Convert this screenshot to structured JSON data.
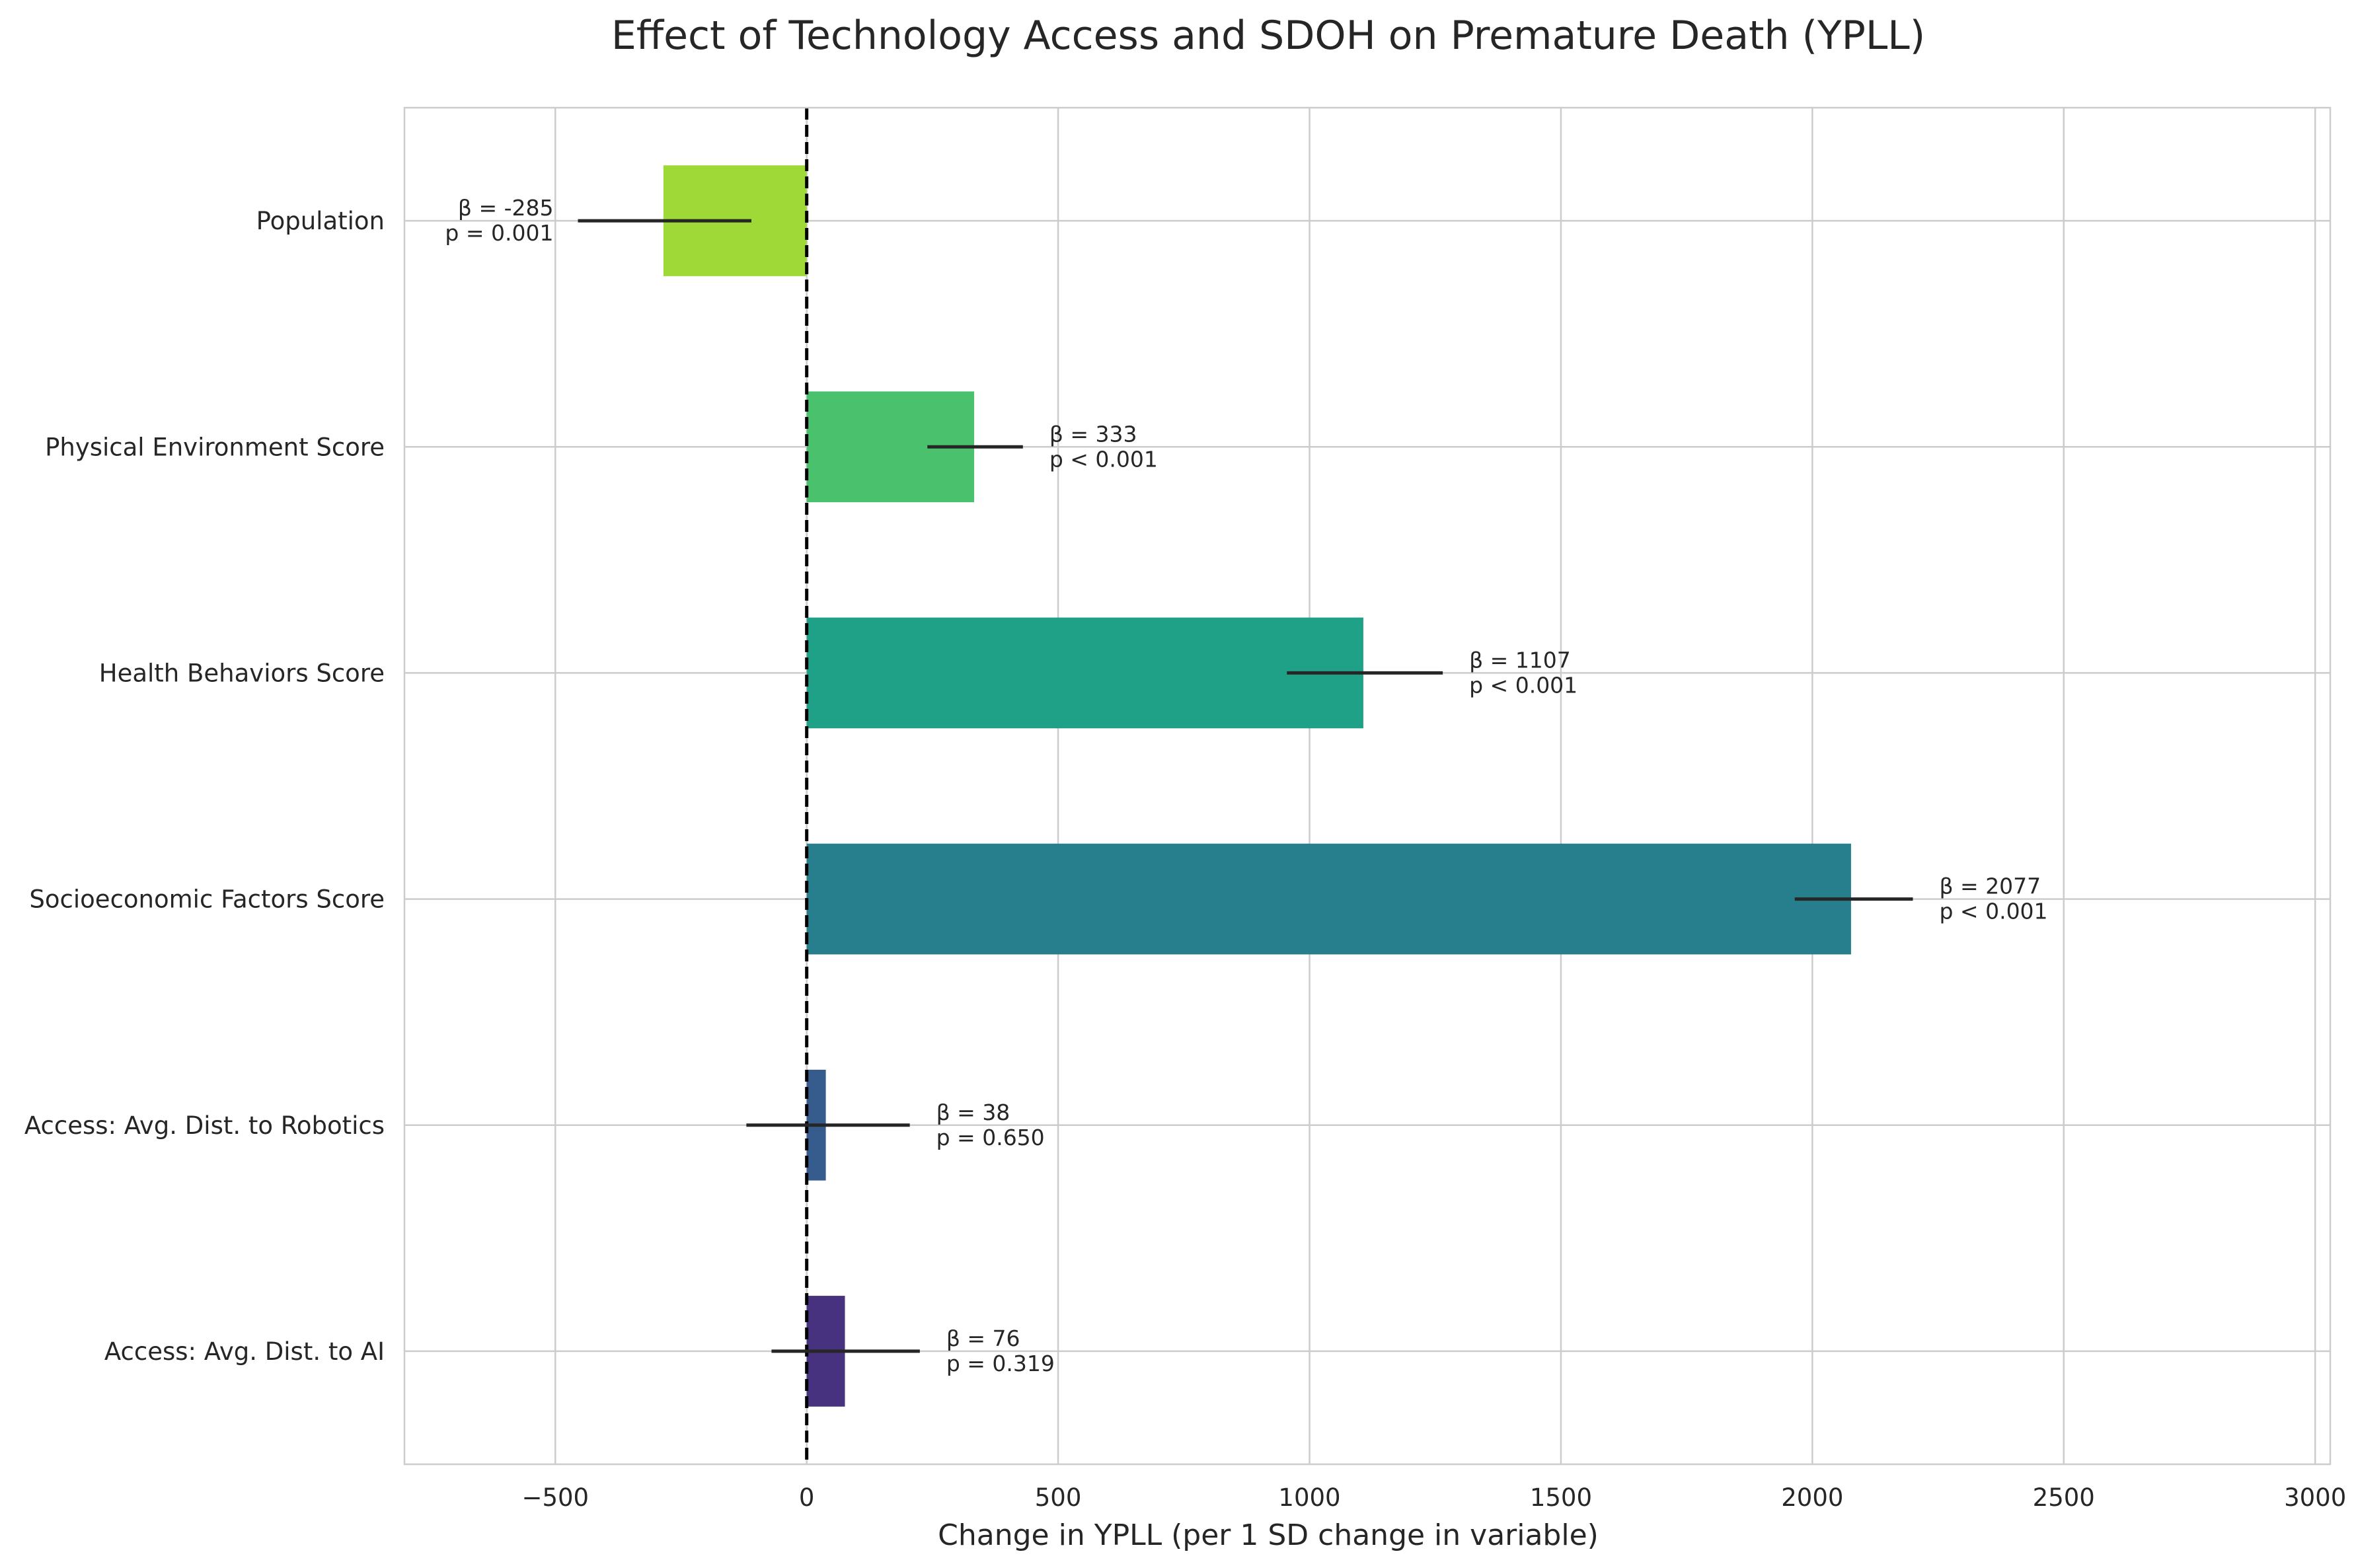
{
  "chart_data": {
    "type": "bar",
    "orientation": "horizontal",
    "title": "Effect of Technology Access and SDOH on Premature Death (YPLL)",
    "xlabel": "Change in YPLL (per 1 SD change in variable)",
    "ylabel": "",
    "xlim": [
      -800,
      3030
    ],
    "xticks": [
      -500,
      0,
      500,
      1000,
      1500,
      2000,
      2500,
      3000
    ],
    "xtick_labels": [
      "−500",
      "0",
      "500",
      "1000",
      "1500",
      "2000",
      "2500",
      "3000"
    ],
    "grid": true,
    "reference_line": {
      "x": 0,
      "style": "dashed",
      "color": "#000000"
    },
    "categories": [
      "Population",
      "Physical Environment Score",
      "Health Behaviors Score",
      "Socioeconomic Factors Score",
      "Access: Avg. Dist. to Robotics",
      "Access: Avg. Dist. to AI"
    ],
    "values": [
      -285,
      333,
      1107,
      2077,
      38,
      76
    ],
    "error_low": [
      -455,
      240,
      955,
      1965,
      -120,
      -70
    ],
    "error_high": [
      -110,
      430,
      1265,
      2200,
      205,
      225
    ],
    "annotations": [
      {
        "beta": "β = -285",
        "p": "p = 0.001"
      },
      {
        "beta": "β = 333",
        "p": "p < 0.001"
      },
      {
        "beta": "β = 1107",
        "p": "p < 0.001"
      },
      {
        "beta": "β = 2077",
        "p": "p < 0.001"
      },
      {
        "beta": "β = 38",
        "p": "p = 0.650"
      },
      {
        "beta": "β = 76",
        "p": "p = 0.319"
      }
    ],
    "colors": [
      "#9fd938",
      "#4ac16d",
      "#1fa187",
      "#277f8e",
      "#365c8d",
      "#46327e"
    ]
  }
}
